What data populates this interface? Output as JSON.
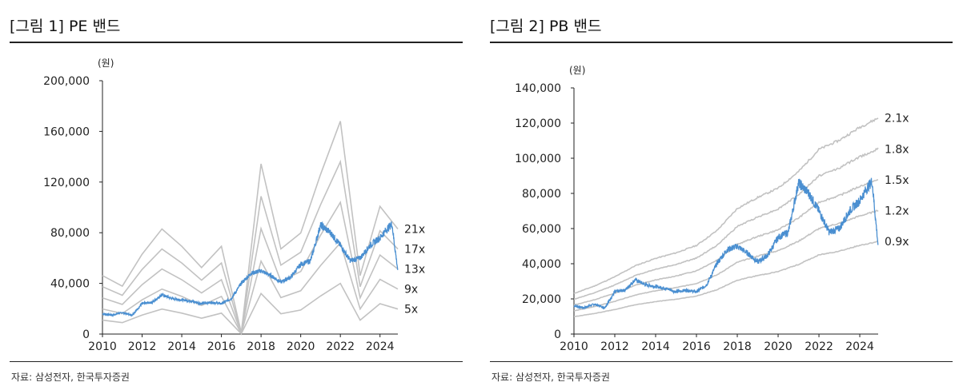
{
  "charts": [
    {
      "title": "[그림 1] PE 밴드",
      "source": "자료: 삼성전자, 한국투자증권",
      "chart_data": {
        "type": "line",
        "title": "[그림 1] PE 밴드",
        "unit_label": "(원)",
        "xlim": [
          2010,
          2024.9
        ],
        "ylim": [
          0,
          200000
        ],
        "x_ticks": [
          2010,
          2012,
          2014,
          2016,
          2018,
          2020,
          2022,
          2024
        ],
        "x_tick_labels": [
          "2010",
          "2012",
          "2014",
          "2016",
          "2018",
          "2020",
          "2022",
          "2024"
        ],
        "y_ticks": [
          0,
          40000,
          80000,
          120000,
          160000,
          200000
        ],
        "y_tick_labels": [
          "0",
          "40,000",
          "80,000",
          "120,000",
          "160,000",
          "200,000"
        ],
        "eps_x": [
          2010,
          2011,
          2012,
          2013,
          2014,
          2015,
          2016,
          2017,
          2018,
          2019,
          2020,
          2021,
          2022,
          2023,
          2024,
          2024.9
        ],
        "eps": [
          2200,
          1800,
          3000,
          3950,
          3300,
          2500,
          3300,
          50,
          6400,
          3200,
          3800,
          6000,
          8000,
          2200,
          4800,
          3950
        ],
        "bands": [
          {
            "multiple": 21,
            "label": "21x"
          },
          {
            "multiple": 17,
            "label": "17x"
          },
          {
            "multiple": 13,
            "label": "13x"
          },
          {
            "multiple": 9,
            "label": "9x"
          },
          {
            "multiple": 5,
            "label": "5x"
          }
        ],
        "price_x": [
          2010,
          2010.5,
          2011,
          2011.5,
          2012,
          2012.5,
          2013,
          2013.5,
          2014,
          2014.5,
          2015,
          2015.5,
          2016,
          2016.5,
          2017,
          2017.5,
          2018,
          2018.5,
          2019,
          2019.5,
          2020,
          2020.5,
          2021,
          2021.5,
          2022,
          2022.5,
          2023,
          2023.5,
          2024,
          2024.3,
          2024.6,
          2024.9
        ],
        "price": [
          16000,
          15000,
          17000,
          15000,
          24000,
          25000,
          31000,
          28000,
          27000,
          26000,
          24000,
          25000,
          24000,
          28000,
          40000,
          48000,
          50000,
          46000,
          41000,
          45000,
          55000,
          58000,
          86000,
          80000,
          70000,
          58000,
          60000,
          70000,
          76000,
          82000,
          87000,
          50000
        ],
        "price_color": "#4a8fd1",
        "band_color": "#c2c2c2"
      }
    },
    {
      "title": "[그림 2] PB 밴드",
      "source": "자료: 삼성전자, 한국투자증권",
      "chart_data": {
        "type": "line",
        "title": "[그림 2] PB 밴드",
        "unit_label": "(원)",
        "xlim": [
          2010,
          2024.9
        ],
        "ylim": [
          0,
          140000
        ],
        "x_ticks": [
          2010,
          2012,
          2014,
          2016,
          2018,
          2020,
          2022,
          2024
        ],
        "x_tick_labels": [
          "2010",
          "2012",
          "2014",
          "2016",
          "2018",
          "2020",
          "2022",
          "2024"
        ],
        "y_ticks": [
          0,
          20000,
          40000,
          60000,
          80000,
          100000,
          120000,
          140000
        ],
        "y_tick_labels": [
          "0",
          "20,000",
          "40,000",
          "60,000",
          "80,000",
          "100,000",
          "120,000",
          "140,000"
        ],
        "bps_x": [
          2010,
          2011,
          2012,
          2013,
          2014,
          2015,
          2016,
          2017,
          2018,
          2019,
          2020,
          2021,
          2022,
          2023,
          2024,
          2024.9
        ],
        "bps": [
          11000,
          13000,
          15500,
          18500,
          20500,
          22000,
          24000,
          28000,
          34000,
          37000,
          39500,
          44000,
          50000,
          52500,
          56000,
          58500
        ],
        "bands": [
          {
            "multiple": 2.1,
            "label": "2.1x"
          },
          {
            "multiple": 1.8,
            "label": "1.8x"
          },
          {
            "multiple": 1.5,
            "label": "1.5x"
          },
          {
            "multiple": 1.2,
            "label": "1.2x"
          },
          {
            "multiple": 0.9,
            "label": "0.9x"
          }
        ],
        "price_x": [
          2010,
          2010.5,
          2011,
          2011.5,
          2012,
          2012.5,
          2013,
          2013.5,
          2014,
          2014.5,
          2015,
          2015.5,
          2016,
          2016.5,
          2017,
          2017.5,
          2018,
          2018.5,
          2019,
          2019.5,
          2020,
          2020.5,
          2021,
          2021.5,
          2022,
          2022.5,
          2023,
          2023.5,
          2024,
          2024.3,
          2024.6,
          2024.9
        ],
        "price": [
          16000,
          15000,
          17000,
          15000,
          24000,
          25000,
          31000,
          28000,
          27000,
          26000,
          24000,
          25000,
          24000,
          28000,
          40000,
          48000,
          50000,
          46000,
          41000,
          45000,
          55000,
          58000,
          86000,
          80000,
          70000,
          58000,
          60000,
          70000,
          76000,
          82000,
          87000,
          50000
        ],
        "price_color": "#4a8fd1",
        "band_color": "#c2c2c2"
      }
    }
  ]
}
